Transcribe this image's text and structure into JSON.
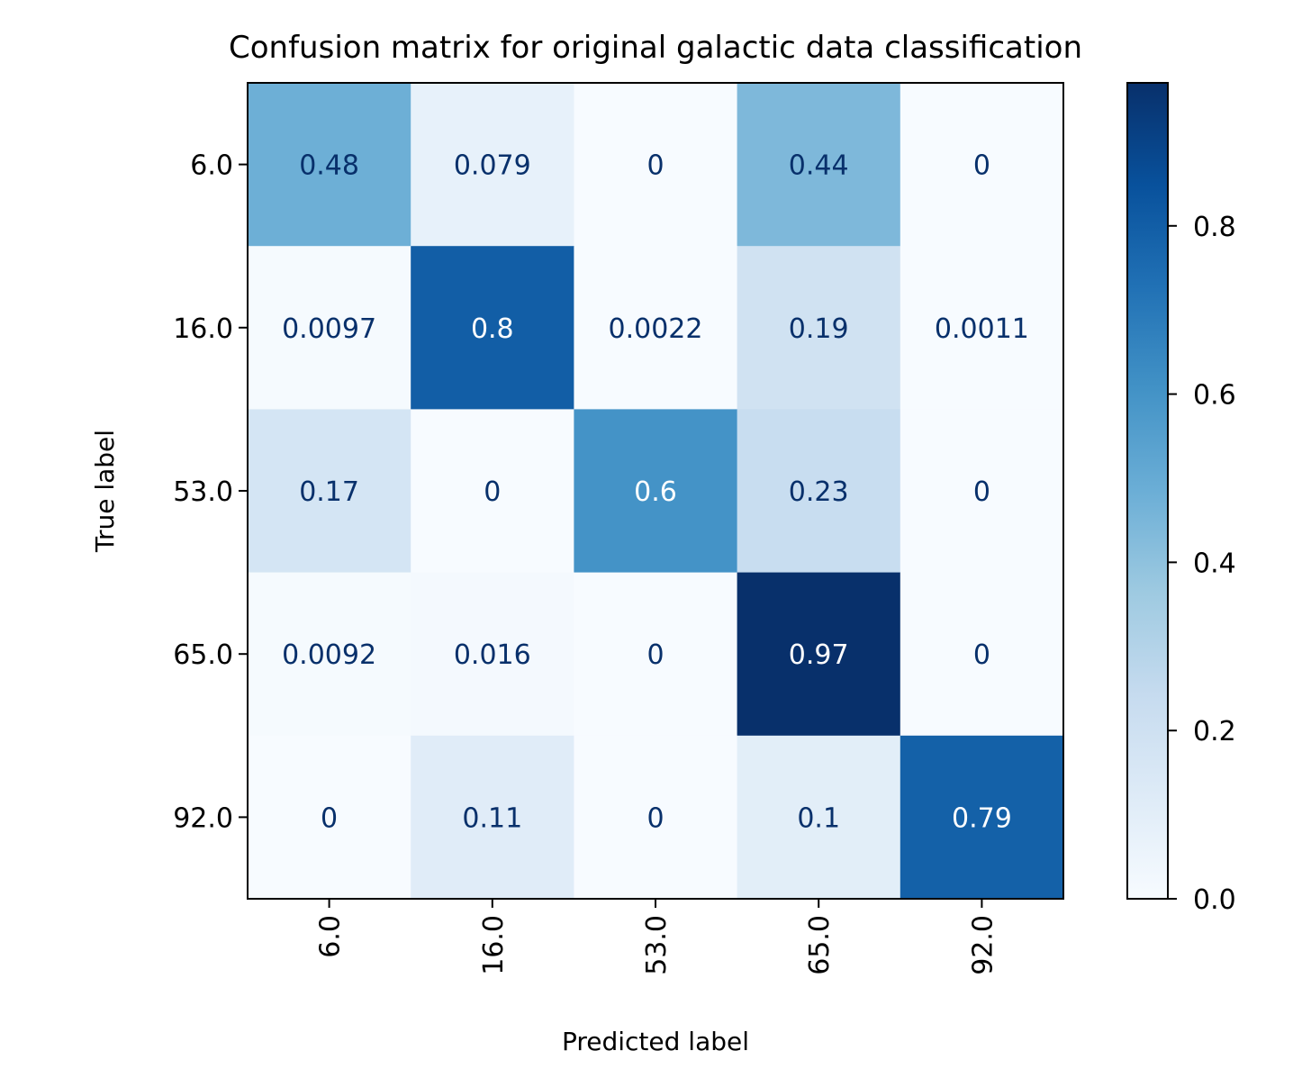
{
  "chart_data": {
    "type": "heatmap",
    "title": "Confusion matrix for original galactic data classification",
    "xlabel": "Predicted label",
    "ylabel": "True label",
    "x_categories": [
      "6.0",
      "16.0",
      "53.0",
      "65.0",
      "92.0"
    ],
    "y_categories": [
      "6.0",
      "16.0",
      "53.0",
      "65.0",
      "92.0"
    ],
    "values": [
      [
        0.48,
        0.079,
        0,
        0.44,
        0
      ],
      [
        0.0097,
        0.8,
        0.0022,
        0.19,
        0.0011
      ],
      [
        0.17,
        0,
        0.6,
        0.23,
        0
      ],
      [
        0.0092,
        0.016,
        0,
        0.97,
        0
      ],
      [
        0,
        0.11,
        0,
        0.1,
        0.79
      ]
    ],
    "value_labels": [
      [
        "0.48",
        "0.079",
        "0",
        "0.44",
        "0"
      ],
      [
        "0.0097",
        "0.8",
        "0.0022",
        "0.19",
        "0.0011"
      ],
      [
        "0.17",
        "0",
        "0.6",
        "0.23",
        "0"
      ],
      [
        "0.0092",
        "0.016",
        "0",
        "0.97",
        "0"
      ],
      [
        "0",
        "0.11",
        "0",
        "0.1",
        "0.79"
      ]
    ],
    "colormap": "Blues",
    "colorbar": {
      "range": [
        0,
        0.97
      ],
      "ticks": [
        0.0,
        0.2,
        0.4,
        0.6,
        0.8
      ],
      "tick_labels": [
        "0.0",
        "0.2",
        "0.4",
        "0.6",
        "0.8"
      ]
    },
    "x_tick_rotation": "vertical",
    "grid": false
  }
}
